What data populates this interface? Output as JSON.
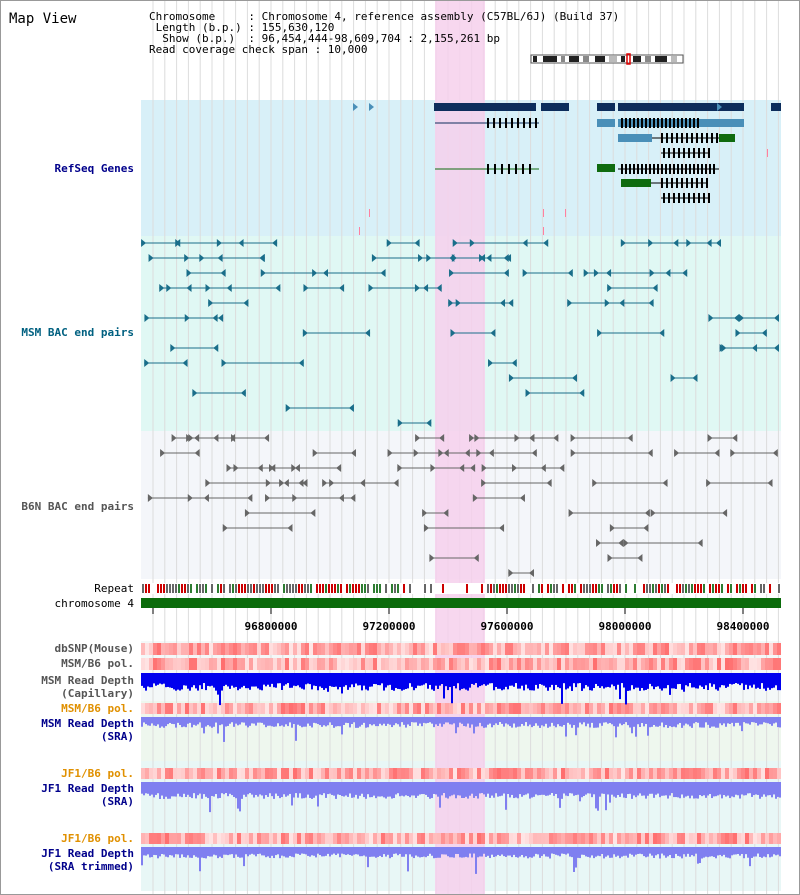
{
  "header": {
    "title": "Map View",
    "info_lines": [
      "Chromosome     : Chromosome 4, reference assembly (C57BL/6J) (Build 37)",
      " Length (b.p.) : 155,630,120",
      "  Show (b.p.)  : 96,454,444-98,609,704 : 2,155,261 bp",
      "Read coverage check span : 10,000"
    ]
  },
  "tracks": {
    "refseq": "RefSeq Genes",
    "msm_bac": "MSM BAC end pairs",
    "b6n_bac": "B6N BAC end pairs",
    "repeat": "Repeat",
    "chromosome": "chromosome 4",
    "dbsnp": "dbSNP(Mouse)",
    "msm_b6_pol_1": "MSM/B6 pol.",
    "msm_read_depth_cap_1": "MSM Read Depth",
    "msm_read_depth_cap_2": "(Capillary)",
    "msm_b6_pol_2": "MSM/B6 pol.",
    "msm_read_depth_sra_1": "MSM Read Depth",
    "msm_read_depth_sra_2": "(SRA)",
    "jf1_b6_pol_1": "JF1/B6 pol.",
    "jf1_read_depth_sra_1": "JF1 Read Depth",
    "jf1_read_depth_sra_2": "(SRA)",
    "jf1_b6_pol_2": "JF1/B6 pol.",
    "jf1_read_depth_trim_1": "JF1 Read Depth",
    "jf1_read_depth_trim_2": "(SRA trimmed)"
  },
  "axis_ticks": [
    "96800000",
    "97200000",
    "97600000",
    "98000000",
    "98400000"
  ],
  "colors": {
    "refseq_bg": "#d8f0f8",
    "msm_bg": "#e0f8f4",
    "b6n_bg": "#f4f6fa",
    "highlight": "#f6d0ec",
    "gene_dark": "#0d2d5c",
    "gene_mid": "#4a8fb8",
    "gene_green": "#0f6b0f",
    "msm_line": "#1a6e8a",
    "b6n_line": "#666666",
    "chrom": "#0b6b0b",
    "depth_dark": "#0000ee",
    "depth_light": "#7f7ff0",
    "label_navy": "#00008b",
    "label_teal": "#006080",
    "label_orange": "#e09000",
    "label_gray": "#555555"
  }
}
